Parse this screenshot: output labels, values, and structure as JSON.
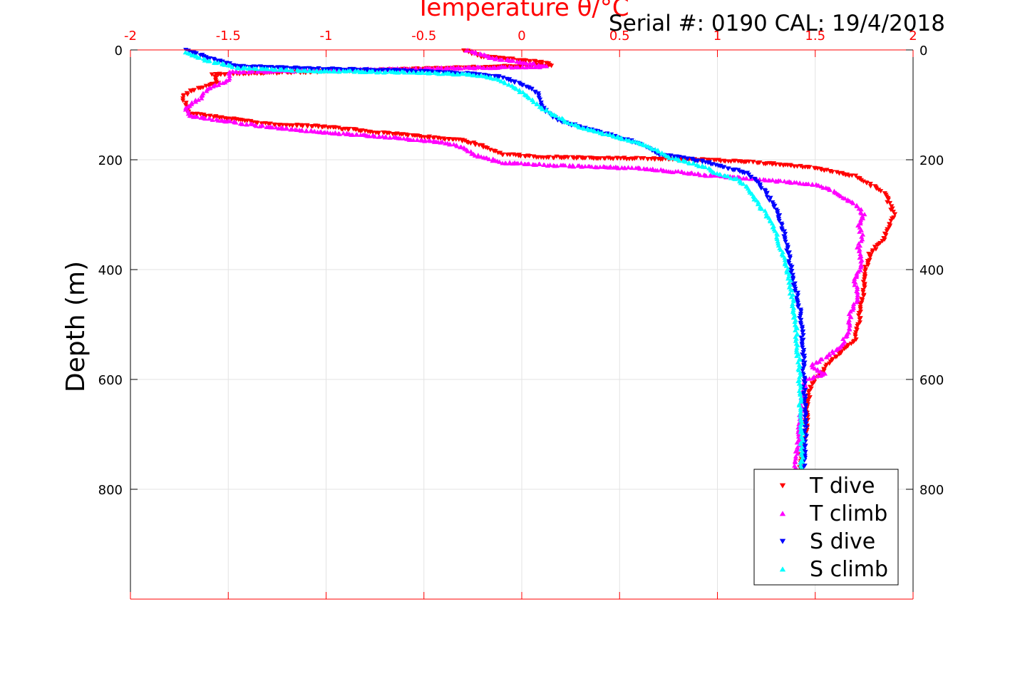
{
  "chart_data": {
    "type": "scatter",
    "title": "Temperature θ/°C",
    "serial_text": "Serial #: 0190  CAL: 19/4/2018",
    "ylabel": "Depth (m)",
    "xlim": [
      -2,
      2
    ],
    "ylim": [
      0,
      1000
    ],
    "y_reversed": true,
    "grid": true,
    "x_tick_labels": [
      "-2",
      "-1.5",
      "-1",
      "-0.5",
      "0",
      "0.5",
      "1",
      "1.5",
      "2"
    ],
    "x_ticks": [
      -2,
      -1.5,
      -1,
      -0.5,
      0,
      0.5,
      1,
      1.5,
      2
    ],
    "y_tick_labels": [
      "0",
      "200",
      "400",
      "600",
      "800"
    ],
    "y_ticks": [
      0,
      200,
      400,
      600,
      800
    ],
    "legend_position": "bottom-right",
    "colors": {
      "axis_top": "#ff0000",
      "axis_left": "#000000",
      "grid": "#e3e3e3"
    },
    "series": [
      {
        "name": "T dive",
        "marker": "triangle-down",
        "color": "#ff0000",
        "points": [
          [
            -0.3,
            0
          ],
          [
            -0.2,
            12
          ],
          [
            0.1,
            22
          ],
          [
            0.15,
            28
          ],
          [
            -1.58,
            45
          ],
          [
            -1.55,
            60
          ],
          [
            -1.7,
            75
          ],
          [
            -1.73,
            85
          ],
          [
            -1.72,
            100
          ],
          [
            -1.7,
            115
          ],
          [
            -1.5,
            125
          ],
          [
            -1.3,
            135
          ],
          [
            -1.0,
            140
          ],
          [
            -0.8,
            148
          ],
          [
            -0.5,
            158
          ],
          [
            -0.3,
            165
          ],
          [
            -0.2,
            175
          ],
          [
            -0.1,
            190
          ],
          [
            0.1,
            195
          ],
          [
            0.9,
            200
          ],
          [
            1.1,
            203
          ],
          [
            1.3,
            208
          ],
          [
            1.5,
            215
          ],
          [
            1.7,
            230
          ],
          [
            1.78,
            245
          ],
          [
            1.85,
            260
          ],
          [
            1.88,
            280
          ],
          [
            1.9,
            300
          ],
          [
            1.88,
            320
          ],
          [
            1.85,
            345
          ],
          [
            1.78,
            370
          ],
          [
            1.76,
            400
          ],
          [
            1.75,
            430
          ],
          [
            1.74,
            460
          ],
          [
            1.72,
            500
          ],
          [
            1.7,
            530
          ],
          [
            1.6,
            560
          ],
          [
            1.55,
            580
          ],
          [
            1.5,
            600
          ],
          [
            1.47,
            620
          ],
          [
            1.46,
            650
          ],
          [
            1.45,
            700
          ],
          [
            1.43,
            740
          ],
          [
            1.42,
            760
          ]
        ]
      },
      {
        "name": "T climb",
        "marker": "triangle-up",
        "color": "#ff00ff",
        "points": [
          [
            -0.28,
            0
          ],
          [
            -0.15,
            15
          ],
          [
            0.05,
            25
          ],
          [
            0.12,
            30
          ],
          [
            -1.5,
            40
          ],
          [
            -1.5,
            55
          ],
          [
            -1.6,
            70
          ],
          [
            -1.65,
            90
          ],
          [
            -1.72,
            105
          ],
          [
            -1.7,
            120
          ],
          [
            -1.5,
            130
          ],
          [
            -1.3,
            140
          ],
          [
            -1.0,
            150
          ],
          [
            -0.7,
            158
          ],
          [
            -0.4,
            168
          ],
          [
            -0.3,
            178
          ],
          [
            -0.25,
            190
          ],
          [
            -0.1,
            205
          ],
          [
            0.15,
            210
          ],
          [
            0.6,
            215
          ],
          [
            0.8,
            222
          ],
          [
            0.95,
            228
          ],
          [
            1.2,
            235
          ],
          [
            1.5,
            245
          ],
          [
            1.6,
            258
          ],
          [
            1.7,
            280
          ],
          [
            1.75,
            300
          ],
          [
            1.72,
            320
          ],
          [
            1.74,
            340
          ],
          [
            1.72,
            360
          ],
          [
            1.74,
            390
          ],
          [
            1.7,
            420
          ],
          [
            1.72,
            450
          ],
          [
            1.68,
            480
          ],
          [
            1.67,
            510
          ],
          [
            1.63,
            540
          ],
          [
            1.55,
            560
          ],
          [
            1.48,
            575
          ],
          [
            1.55,
            590
          ],
          [
            1.45,
            600
          ],
          [
            1.44,
            620
          ],
          [
            1.42,
            680
          ],
          [
            1.41,
            720
          ],
          [
            1.4,
            760
          ]
        ]
      },
      {
        "name": "S dive",
        "marker": "triangle-down",
        "color": "#0000ff",
        "points": [
          [
            -1.72,
            0
          ],
          [
            -1.6,
            15
          ],
          [
            -1.45,
            30
          ],
          [
            -1.0,
            35
          ],
          [
            -0.6,
            38
          ],
          [
            -0.35,
            42
          ],
          [
            -0.2,
            45
          ],
          [
            -0.1,
            50
          ],
          [
            -0.02,
            60
          ],
          [
            0.05,
            70
          ],
          [
            0.08,
            80
          ],
          [
            0.1,
            95
          ],
          [
            0.12,
            110
          ],
          [
            0.15,
            120
          ],
          [
            0.2,
            130
          ],
          [
            0.3,
            140
          ],
          [
            0.4,
            150
          ],
          [
            0.5,
            160
          ],
          [
            0.6,
            170
          ],
          [
            0.65,
            180
          ],
          [
            0.7,
            190
          ],
          [
            0.8,
            195
          ],
          [
            0.95,
            205
          ],
          [
            1.05,
            215
          ],
          [
            1.15,
            225
          ],
          [
            1.2,
            240
          ],
          [
            1.25,
            260
          ],
          [
            1.3,
            290
          ],
          [
            1.33,
            320
          ],
          [
            1.35,
            350
          ],
          [
            1.37,
            380
          ],
          [
            1.38,
            410
          ],
          [
            1.41,
            450
          ],
          [
            1.43,
            500
          ],
          [
            1.44,
            550
          ],
          [
            1.44,
            600
          ],
          [
            1.45,
            650
          ],
          [
            1.45,
            700
          ],
          [
            1.45,
            740
          ],
          [
            1.44,
            760
          ]
        ]
      },
      {
        "name": "S climb",
        "marker": "triangle-up",
        "color": "#00ffff",
        "points": [
          [
            -1.72,
            5
          ],
          [
            -1.62,
            18
          ],
          [
            -1.45,
            32
          ],
          [
            -1.1,
            38
          ],
          [
            -0.7,
            40
          ],
          [
            -0.45,
            42
          ],
          [
            -0.3,
            44
          ],
          [
            -0.15,
            50
          ],
          [
            -0.05,
            65
          ],
          [
            0.0,
            78
          ],
          [
            0.05,
            90
          ],
          [
            0.1,
            105
          ],
          [
            0.15,
            115
          ],
          [
            0.2,
            125
          ],
          [
            0.25,
            135
          ],
          [
            0.35,
            145
          ],
          [
            0.45,
            155
          ],
          [
            0.55,
            165
          ],
          [
            0.65,
            175
          ],
          [
            0.7,
            185
          ],
          [
            0.75,
            195
          ],
          [
            0.85,
            205
          ],
          [
            0.95,
            215
          ],
          [
            1.0,
            225
          ],
          [
            1.1,
            235
          ],
          [
            1.15,
            250
          ],
          [
            1.2,
            275
          ],
          [
            1.25,
            300
          ],
          [
            1.3,
            330
          ],
          [
            1.32,
            360
          ],
          [
            1.35,
            390
          ],
          [
            1.37,
            420
          ],
          [
            1.38,
            450
          ],
          [
            1.4,
            500
          ],
          [
            1.41,
            550
          ],
          [
            1.42,
            580
          ],
          [
            1.42,
            620
          ],
          [
            1.43,
            680
          ],
          [
            1.43,
            730
          ],
          [
            1.43,
            760
          ]
        ]
      }
    ]
  }
}
